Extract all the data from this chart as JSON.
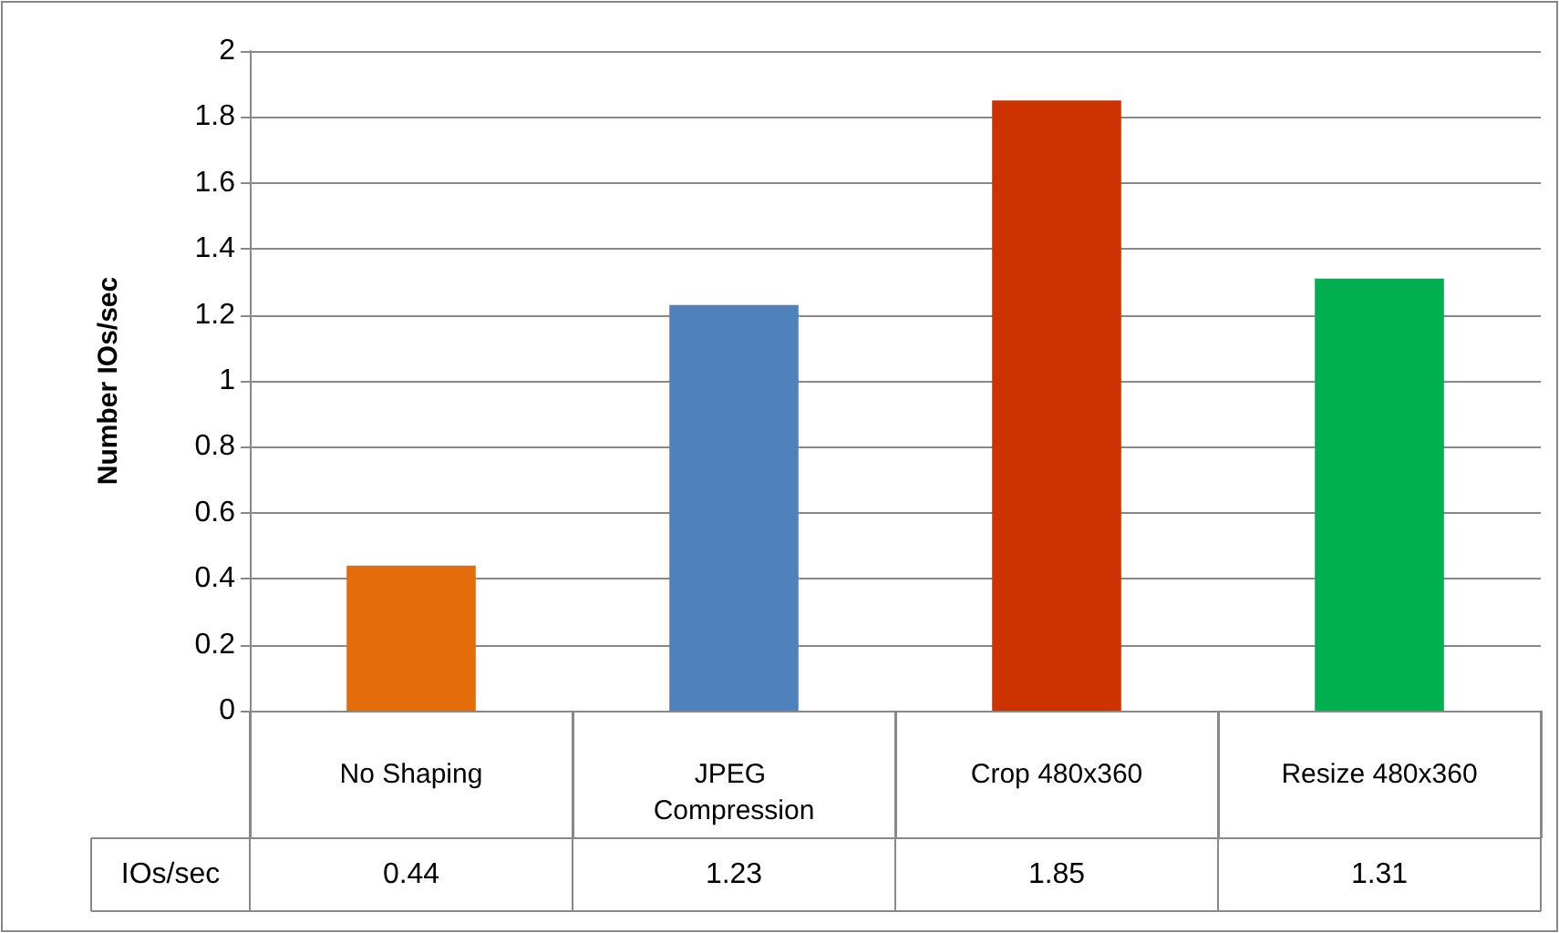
{
  "chart_data": {
    "type": "bar",
    "ylabel": "Number IOs/sec",
    "categories": [
      "No Shaping",
      "JPEG Compression",
      "Crop 480x360",
      "Resize 480x360"
    ],
    "series": [
      {
        "name": "IOs/sec",
        "colors": [
          "#e46c0a",
          "#4f81bd",
          "#cc3300",
          "#00b050"
        ],
        "values": [
          0.44,
          1.23,
          1.85,
          1.31
        ]
      }
    ],
    "ylim": [
      0,
      2
    ],
    "yticks": [
      0,
      0.2,
      0.4,
      0.6,
      0.8,
      1,
      1.2,
      1.4,
      1.6,
      1.8,
      2
    ],
    "grid": "y",
    "legend": false,
    "data_labels": true
  }
}
